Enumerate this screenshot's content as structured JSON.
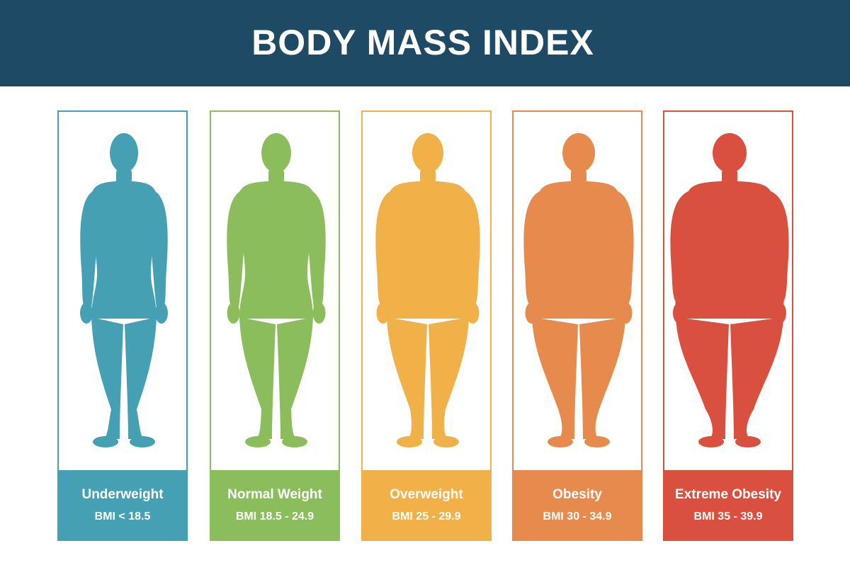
{
  "title": "BODY MASS INDEX",
  "colors": {
    "header_bg": "#1e4a66",
    "header_text": "#ffffff"
  },
  "categories": [
    {
      "name": "Underweight",
      "range": "BMI < 18.5",
      "color": "#45a0b4",
      "icon": "person-silhouette-icon"
    },
    {
      "name": "Normal Weight",
      "range": "BMI 18.5 - 24.9",
      "color": "#8bbd5c",
      "icon": "person-silhouette-icon"
    },
    {
      "name": "Overweight",
      "range": "BMI 25 - 29.9",
      "color": "#f0b149",
      "icon": "person-silhouette-icon"
    },
    {
      "name": "Obesity",
      "range": "BMI 30 - 34.9",
      "color": "#e68b4d",
      "icon": "person-silhouette-icon"
    },
    {
      "name": "Extreme Obesity",
      "range": "BMI 35 - 39.9",
      "color": "#d9503f",
      "icon": "person-silhouette-icon"
    }
  ]
}
